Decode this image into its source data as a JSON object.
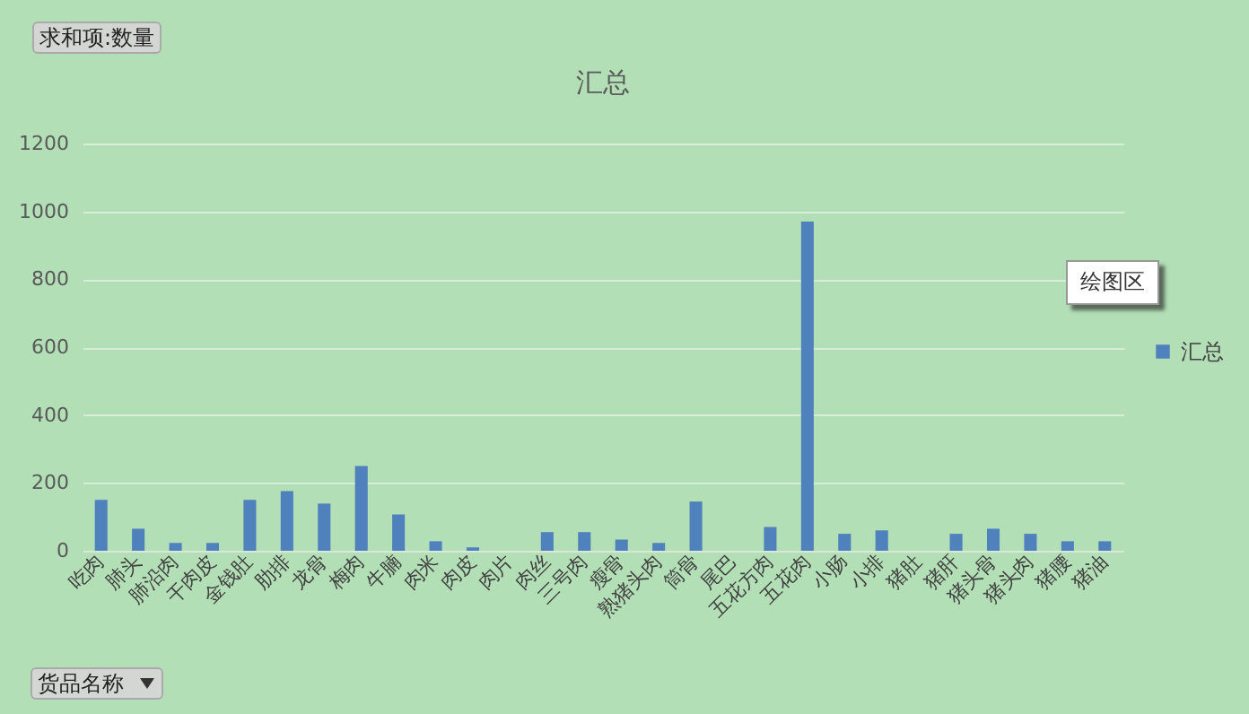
{
  "chart_data": {
    "type": "bar",
    "title": "汇总",
    "categories": [
      "吃肉",
      "肺头",
      "肺沿肉",
      "干肉皮",
      "金钱肚",
      "肋排",
      "龙骨",
      "梅肉",
      "牛腩",
      "肉米",
      "肉皮",
      "肉片",
      "肉丝",
      "三号肉",
      "瘦骨",
      "熟猪头肉",
      "筒骨",
      "尾巴",
      "五花方肉",
      "五花肉",
      "小肠",
      "小排",
      "猪肚",
      "猪肝",
      "猪头骨",
      "猪头肉",
      "猪腰",
      "猪油"
    ],
    "series": [
      {
        "name": "汇总",
        "color": "#4f81bd",
        "values": [
          150,
          65,
          23,
          23,
          150,
          176,
          139,
          250,
          107,
          28,
          10,
          0,
          55,
          55,
          33,
          23,
          145,
          0,
          70,
          970,
          50,
          60,
          0,
          50,
          65,
          50,
          28,
          28
        ]
      }
    ],
    "ylim": [
      0,
      1200
    ],
    "yticks": [
      0,
      200,
      400,
      600,
      800,
      1000,
      1200
    ],
    "grid": "y",
    "legend": "right",
    "annotations": [
      "求和项:数量",
      "货品名称",
      "绘图区"
    ]
  }
}
